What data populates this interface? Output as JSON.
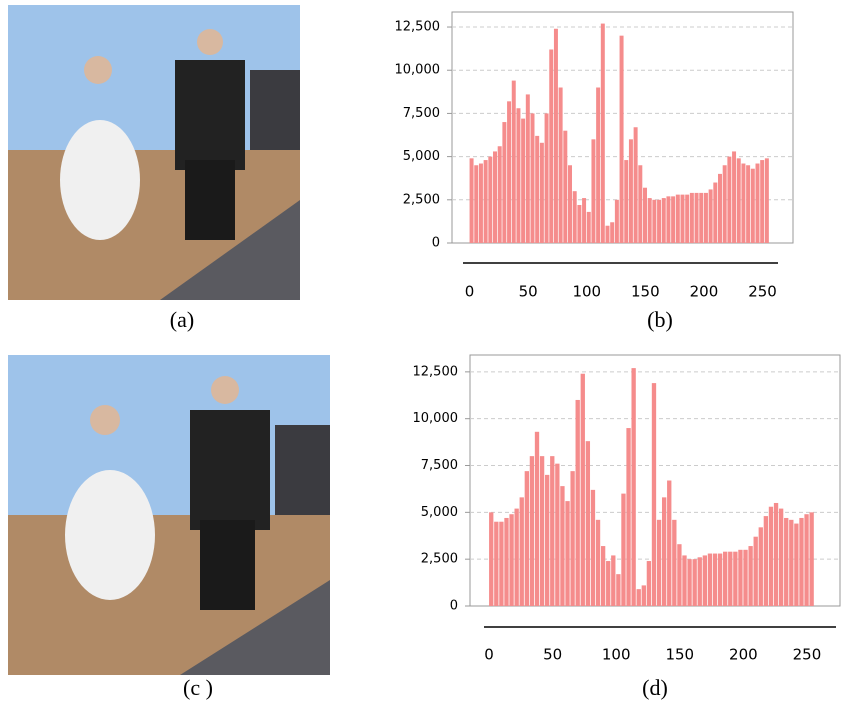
{
  "captions": [
    "(a)",
    "(b)",
    "(c )",
    "(d)"
  ],
  "chart_data": [
    {
      "type": "bar",
      "color": "#f58c8c",
      "grid": true,
      "x": [
        0,
        4,
        8,
        12,
        16,
        20,
        24,
        28,
        32,
        36,
        40,
        44,
        48,
        52,
        56,
        60,
        64,
        68,
        72,
        76,
        80,
        84,
        88,
        92,
        96,
        100,
        104,
        108,
        112,
        116,
        120,
        124,
        128,
        132,
        136,
        140,
        144,
        148,
        152,
        156,
        160,
        164,
        168,
        172,
        176,
        180,
        184,
        188,
        192,
        196,
        200,
        204,
        208,
        212,
        216,
        220,
        224,
        228,
        232,
        236,
        240,
        244,
        248,
        252
      ],
      "values": [
        4900,
        4500,
        4600,
        4800,
        5000,
        5300,
        5600,
        7000,
        8200,
        9400,
        7800,
        7200,
        8600,
        7500,
        6200,
        5800,
        7500,
        11200,
        12400,
        9000,
        6500,
        4500,
        3000,
        2200,
        2600,
        1800,
        6000,
        9000,
        12700,
        1000,
        1200,
        2500,
        12000,
        4800,
        6000,
        6700,
        4500,
        3200,
        2600,
        2500,
        2500,
        2600,
        2700,
        2700,
        2800,
        2800,
        2800,
        2900,
        2900,
        2900,
        2900,
        3100,
        3500,
        4000,
        4500,
        5000,
        5300,
        4900,
        4600,
        4500,
        4300,
        4600,
        4800,
        4900
      ],
      "xlim": [
        -15,
        276
      ],
      "ylim": [
        0,
        13370
      ],
      "xticks": [
        0,
        50,
        100,
        150,
        200,
        250
      ],
      "yticks": [
        0,
        {
          "value": 2500,
          "label": "2,500"
        },
        {
          "value": 5000,
          "label": "5,000"
        },
        {
          "value": 7500,
          "label": "7,500"
        },
        {
          "value": 10000,
          "label": "10,000"
        },
        {
          "value": 12500,
          "label": "12,500"
        }
      ]
    },
    {
      "type": "bar",
      "color": "#f58c8c",
      "grid": true,
      "x": [
        0,
        4,
        8,
        12,
        16,
        20,
        24,
        28,
        32,
        36,
        40,
        44,
        48,
        52,
        56,
        60,
        64,
        68,
        72,
        76,
        80,
        84,
        88,
        92,
        96,
        100,
        104,
        108,
        112,
        116,
        120,
        124,
        128,
        132,
        136,
        140,
        144,
        148,
        152,
        156,
        160,
        164,
        168,
        172,
        176,
        180,
        184,
        188,
        192,
        196,
        200,
        204,
        208,
        212,
        216,
        220,
        224,
        228,
        232,
        236,
        240,
        244,
        248,
        252
      ],
      "values": [
        5000,
        4500,
        4500,
        4700,
        4900,
        5200,
        5800,
        7200,
        8000,
        9300,
        8000,
        7000,
        8000,
        7600,
        6400,
        5600,
        7200,
        11000,
        12400,
        8800,
        6200,
        4600,
        3200,
        2400,
        2700,
        1700,
        6000,
        9500,
        12700,
        900,
        1100,
        2400,
        11900,
        4600,
        5800,
        6700,
        4600,
        3300,
        2700,
        2500,
        2500,
        2600,
        2700,
        2800,
        2800,
        2800,
        2900,
        2900,
        2900,
        3000,
        3000,
        3200,
        3700,
        4200,
        4800,
        5300,
        5500,
        5200,
        4700,
        4600,
        4400,
        4700,
        4900,
        5000
      ],
      "xlim": [
        -15,
        276
      ],
      "ylim": [
        0,
        13400
      ],
      "xticks": [
        0,
        50,
        100,
        150,
        200,
        250
      ],
      "yticks": [
        0,
        {
          "value": 2500,
          "label": "2,500"
        },
        {
          "value": 5000,
          "label": "5,000"
        },
        {
          "value": 7500,
          "label": "7,500"
        },
        {
          "value": 10000,
          "label": "10,000"
        },
        {
          "value": 12500,
          "label": "12,500"
        }
      ]
    }
  ]
}
